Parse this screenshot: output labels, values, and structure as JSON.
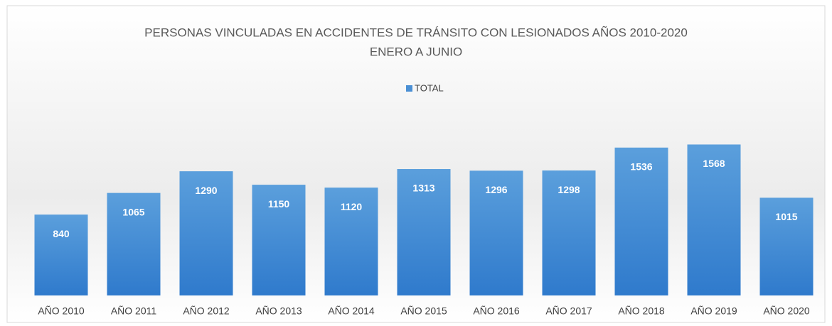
{
  "chart_data": {
    "type": "bar",
    "title": "PERSONAS VINCULADAS EN ACCIDENTES DE TRÁNSITO  CON  LESIONADOS  AÑOS 2010-2020",
    "subtitle": "ENERO A JUNIO",
    "categories": [
      "AÑO 2010",
      "AÑO 2011",
      "AÑO 2012",
      "AÑO 2013",
      "AÑO 2014",
      "AÑO 2015",
      "AÑO 2016",
      "AÑO 2017",
      "AÑO 2018",
      "AÑO 2019",
      "AÑO 2020"
    ],
    "series": [
      {
        "name": "TOTAL",
        "color": "#4a8fd4",
        "values": [
          840,
          1065,
          1290,
          1150,
          1120,
          1313,
          1296,
          1298,
          1536,
          1568,
          1015
        ]
      }
    ],
    "ylim": [
      0,
      1800
    ],
    "legend": "top"
  }
}
